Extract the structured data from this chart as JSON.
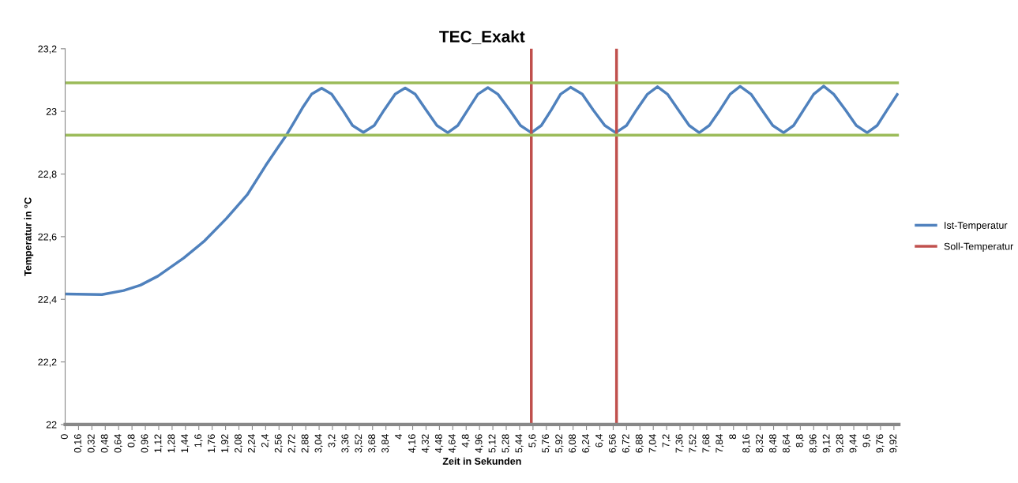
{
  "chart_data": {
    "type": "line",
    "title": "TEC_Exakt",
    "xlabel": "Zeit in Sekunden",
    "ylabel": "Temperatur in °C",
    "xlim": [
      0,
      9.98
    ],
    "ylim": [
      22,
      23.2
    ],
    "xticks": [
      0,
      {
        "value": 0.16,
        "label": "0,16"
      },
      {
        "value": 0.32,
        "label": "0,32"
      },
      {
        "value": 0.48,
        "label": "0,48"
      },
      {
        "value": 0.64,
        "label": "0,64"
      },
      {
        "value": 0.8,
        "label": "0,8"
      },
      {
        "value": 0.96,
        "label": "0,96"
      },
      {
        "value": 1.12,
        "label": "1,12"
      },
      {
        "value": 1.28,
        "label": "1,28"
      },
      {
        "value": 1.44,
        "label": "1,44"
      },
      {
        "value": 1.6,
        "label": "1,6"
      },
      {
        "value": 1.76,
        "label": "1,76"
      },
      {
        "value": 1.92,
        "label": "1,92"
      },
      {
        "value": 2.08,
        "label": "2,08"
      },
      {
        "value": 2.24,
        "label": "2,24"
      },
      {
        "value": 2.4,
        "label": "2,4"
      },
      {
        "value": 2.56,
        "label": "2,56"
      },
      {
        "value": 2.72,
        "label": "2,72"
      },
      {
        "value": 2.88,
        "label": "2,88"
      },
      {
        "value": 3.04,
        "label": "3,04"
      },
      {
        "value": 3.2,
        "label": "3,2"
      },
      {
        "value": 3.36,
        "label": "3,36"
      },
      {
        "value": 3.52,
        "label": "3,52"
      },
      {
        "value": 3.68,
        "label": "3,68"
      },
      {
        "value": 3.84,
        "label": "3,84"
      },
      4,
      {
        "value": 4.16,
        "label": "4,16"
      },
      {
        "value": 4.32,
        "label": "4,32"
      },
      {
        "value": 4.48,
        "label": "4,48"
      },
      {
        "value": 4.64,
        "label": "4,64"
      },
      {
        "value": 4.8,
        "label": "4,8"
      },
      {
        "value": 4.96,
        "label": "4,96"
      },
      {
        "value": 5.12,
        "label": "5,12"
      },
      {
        "value": 5.28,
        "label": "5,28"
      },
      {
        "value": 5.44,
        "label": "5,44"
      },
      {
        "value": 5.6,
        "label": "5,6"
      },
      {
        "value": 5.76,
        "label": "5,76"
      },
      {
        "value": 5.92,
        "label": "5,92"
      },
      {
        "value": 6.08,
        "label": "6,08"
      },
      {
        "value": 6.24,
        "label": "6,24"
      },
      {
        "value": 6.4,
        "label": "6,4"
      },
      {
        "value": 6.56,
        "label": "6,56"
      },
      {
        "value": 6.72,
        "label": "6,72"
      },
      {
        "value": 6.88,
        "label": "6,88"
      },
      {
        "value": 7.04,
        "label": "7,04"
      },
      {
        "value": 7.2,
        "label": "7,2"
      },
      {
        "value": 7.36,
        "label": "7,36"
      },
      {
        "value": 7.52,
        "label": "7,52"
      },
      {
        "value": 7.68,
        "label": "7,68"
      },
      {
        "value": 7.84,
        "label": "7,84"
      },
      8,
      {
        "value": 8.16,
        "label": "8,16"
      },
      {
        "value": 8.32,
        "label": "8,32"
      },
      {
        "value": 8.48,
        "label": "8,48"
      },
      {
        "value": 8.64,
        "label": "8,64"
      },
      {
        "value": 8.8,
        "label": "8,8"
      },
      {
        "value": 8.96,
        "label": "8,96"
      },
      {
        "value": 9.12,
        "label": "9,12"
      },
      {
        "value": 9.28,
        "label": "9,28"
      },
      {
        "value": 9.44,
        "label": "9,44"
      },
      {
        "value": 9.6,
        "label": "9,6"
      },
      {
        "value": 9.76,
        "label": "9,76"
      },
      {
        "value": 9.92,
        "label": "9,92"
      }
    ],
    "yticks": [
      22,
      {
        "value": 22.2,
        "label": "22,2"
      },
      {
        "value": 22.4,
        "label": "22,4"
      },
      {
        "value": 22.6,
        "label": "22,6"
      },
      {
        "value": 22.8,
        "label": "22,8"
      },
      23,
      {
        "value": 23.2,
        "label": "23,2"
      }
    ],
    "grid": false,
    "legend": "right",
    "marker": "none",
    "line_style": "solid",
    "series": [
      {
        "name": "Ist-Temperatur",
        "color": "#4f81bd",
        "x": [
          0,
          0.44,
          0.7,
          0.9,
          1.11,
          1.42,
          1.67,
          1.93,
          2.18,
          2.4,
          2.56,
          2.65,
          2.75,
          2.84,
          2.95,
          3.07,
          3.19,
          3.32,
          3.44,
          3.57,
          3.7,
          3.82,
          3.95,
          4.07,
          4.19,
          4.32,
          4.45,
          4.58,
          4.7,
          4.82,
          4.94,
          5.06,
          5.18,
          5.32,
          5.45,
          5.58,
          5.7,
          5.82,
          5.93,
          6.05,
          6.19,
          6.32,
          6.46,
          6.59,
          6.72,
          6.84,
          6.97,
          7.09,
          7.21,
          7.34,
          7.47,
          7.59,
          7.71,
          7.84,
          7.96,
          8.08,
          8.21,
          8.34,
          8.47,
          8.6,
          8.72,
          8.84,
          8.96,
          9.08,
          9.2,
          9.34,
          9.47,
          9.6,
          9.72,
          9.84,
          9.96
        ],
        "values": [
          22.417,
          22.415,
          22.428,
          22.445,
          22.474,
          22.532,
          22.587,
          22.658,
          22.734,
          22.827,
          22.89,
          22.925,
          22.97,
          23.011,
          23.055,
          23.074,
          23.055,
          23.005,
          22.955,
          22.933,
          22.955,
          23.005,
          23.055,
          23.075,
          23.055,
          23.005,
          22.955,
          22.932,
          22.955,
          23.005,
          23.055,
          23.076,
          23.055,
          23.005,
          22.955,
          22.932,
          22.955,
          23.005,
          23.055,
          23.077,
          23.055,
          23.005,
          22.955,
          22.932,
          22.955,
          23.005,
          23.055,
          23.079,
          23.055,
          23.005,
          22.955,
          22.932,
          22.955,
          23.005,
          23.055,
          23.08,
          23.055,
          23.005,
          22.955,
          22.932,
          22.955,
          23.005,
          23.055,
          23.081,
          23.055,
          23.005,
          22.955,
          22.932,
          22.955,
          23.005,
          23.054
        ]
      },
      {
        "name": "Soll-Temperatur",
        "color": "#c0504d",
        "x": [
          5.58,
          5.58,
          null,
          6.6,
          6.6
        ],
        "values": [
          22,
          23.2,
          null,
          22,
          23.2
        ]
      }
    ],
    "ref_lines": [
      {
        "axis": "y",
        "value": 23.091,
        "color": "#9bbb59"
      },
      {
        "axis": "y",
        "value": 22.924,
        "color": "#9bbb59"
      }
    ]
  }
}
